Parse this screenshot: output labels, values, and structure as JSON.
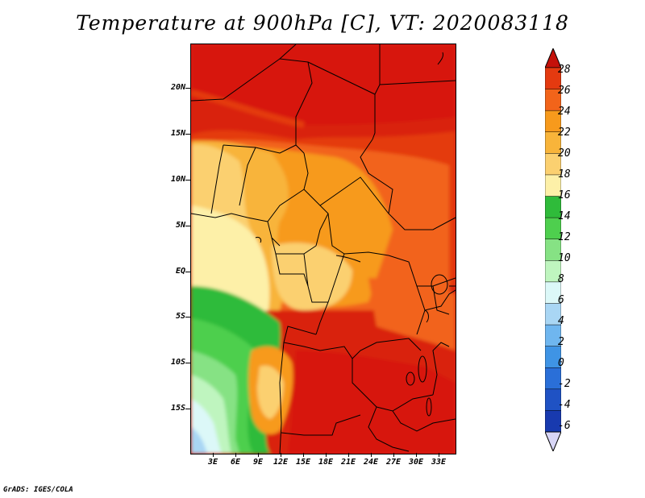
{
  "title": "Temperature at 900hPa [C], VT: 2020083118",
  "footer": "GrADS: IGES/COLA",
  "y_ticks": [
    "20N",
    "15N",
    "10N",
    "5N",
    "EQ",
    "5S",
    "10S",
    "15S"
  ],
  "x_ticks": [
    "3E",
    "6E",
    "9E",
    "12E",
    "15E",
    "18E",
    "21E",
    "24E",
    "27E",
    "30E",
    "33E"
  ],
  "colorbar": {
    "labels": [
      "28",
      "26",
      "24",
      "22",
      "20",
      "18",
      "16",
      "14",
      "12",
      "10",
      "8",
      "6",
      "4",
      "2",
      "0",
      "-2",
      "-4",
      "-6"
    ],
    "colors": [
      "#d7180b",
      "#e43a10",
      "#f2641a",
      "#f79a1c",
      "#f8b43a",
      "#fbd070",
      "#fdf0a8",
      "#2fbb3a",
      "#4ecf4e",
      "#86e284",
      "#bff5bf",
      "#dcf8f8",
      "#a9d6f4",
      "#6fb6ef",
      "#3f94e5",
      "#2a6fd8",
      "#1f52c4",
      "#183aaf",
      "#14208a"
    ],
    "top_arrow_color": "#c4110a",
    "bottom_arrow_color": "#d8d6f6"
  }
}
